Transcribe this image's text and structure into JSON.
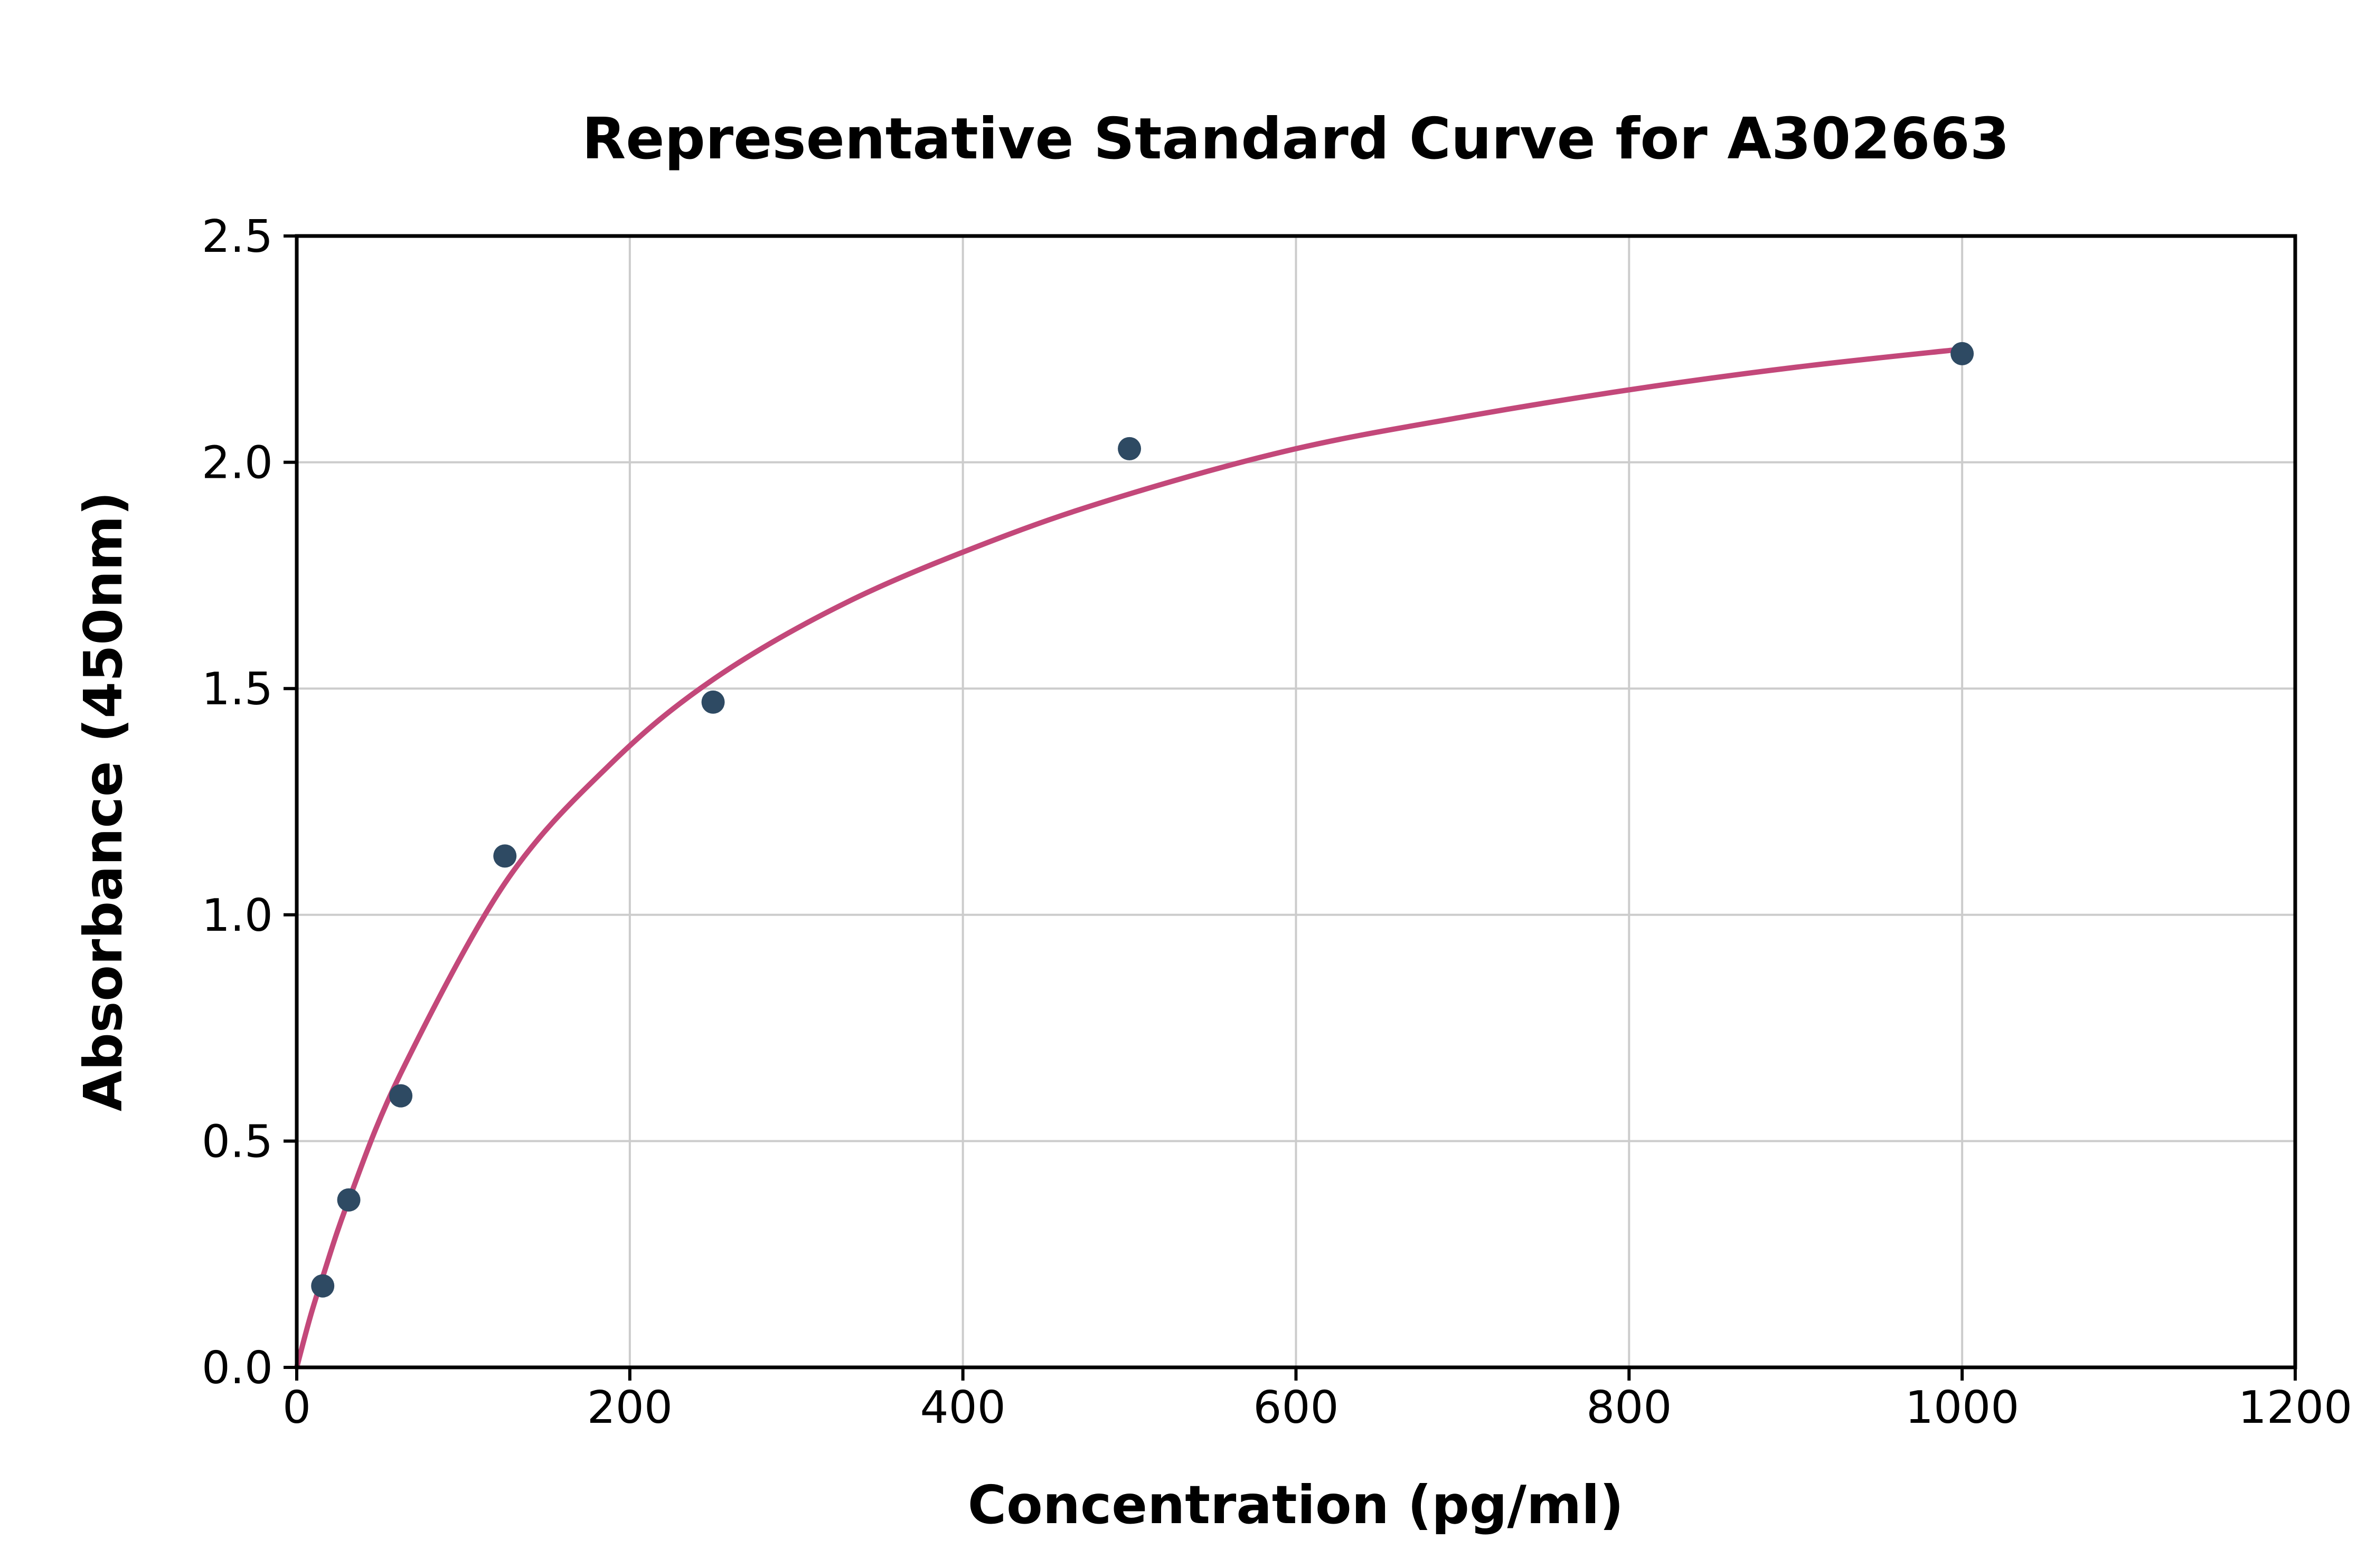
{
  "figure": {
    "background": "#ffffff"
  },
  "chart_data": {
    "type": "scatter",
    "title": "Representative Standard Curve for A302663",
    "xlabel": "Concentration (pg/ml)",
    "ylabel": "Absorbance (450nm)",
    "xlim": [
      0,
      1200
    ],
    "ylim": [
      0,
      2.5
    ],
    "x_ticks": [
      0,
      200,
      400,
      600,
      800,
      1000,
      1200
    ],
    "x_tick_labels": [
      "0",
      "200",
      "400",
      "600",
      "800",
      "1000",
      "1200"
    ],
    "y_ticks": [
      0,
      0.5,
      1,
      1.5,
      2,
      2.5
    ],
    "y_tick_labels": [
      "0.0",
      "0.5",
      "1.0",
      "1.5",
      "2.0",
      "2.5"
    ],
    "grid": true,
    "legend": "none",
    "colors": {
      "point_color": "#2e4a63",
      "curve_color": "#c3487a",
      "grid_color": "#cccccc",
      "spine_color": "#000000"
    },
    "series": [
      {
        "name": "standard-points",
        "type": "scatter",
        "color": "#2e4a63",
        "x": [
          15.6,
          31.25,
          62.5,
          125,
          250,
          500,
          1000
        ],
        "y": [
          0.18,
          0.37,
          0.6,
          1.13,
          1.47,
          2.03,
          2.24
        ]
      },
      {
        "name": "fit-curve",
        "type": "line",
        "color": "#c3487a",
        "x": [
          0,
          8,
          15.6,
          31.25,
          62.5,
          125,
          187.5,
          250,
          330,
          420,
          500,
          600,
          700,
          800,
          900,
          1000
        ],
        "y": [
          0,
          0.11,
          0.2,
          0.37,
          0.65,
          1.07,
          1.33,
          1.52,
          1.69,
          1.83,
          1.93,
          2.03,
          2.1,
          2.16,
          2.21,
          2.25
        ]
      }
    ]
  }
}
